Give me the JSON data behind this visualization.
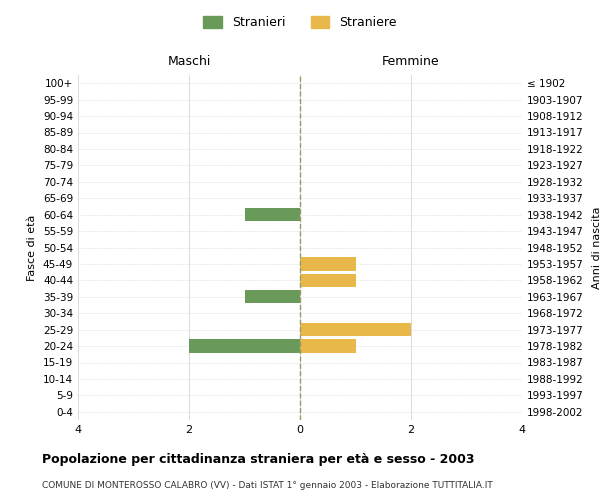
{
  "age_groups": [
    "100+",
    "95-99",
    "90-94",
    "85-89",
    "80-84",
    "75-79",
    "70-74",
    "65-69",
    "60-64",
    "55-59",
    "50-54",
    "45-49",
    "40-44",
    "35-39",
    "30-34",
    "25-29",
    "20-24",
    "15-19",
    "10-14",
    "5-9",
    "0-4"
  ],
  "birth_years": [
    "≤ 1902",
    "1903-1907",
    "1908-1912",
    "1913-1917",
    "1918-1922",
    "1923-1927",
    "1928-1932",
    "1933-1937",
    "1938-1942",
    "1943-1947",
    "1948-1952",
    "1953-1957",
    "1958-1962",
    "1963-1967",
    "1968-1972",
    "1973-1977",
    "1978-1982",
    "1983-1987",
    "1988-1992",
    "1993-1997",
    "1998-2002"
  ],
  "maschi": [
    0,
    0,
    0,
    0,
    0,
    0,
    0,
    0,
    -1,
    0,
    0,
    0,
    0,
    -1,
    0,
    0,
    -2,
    0,
    0,
    0,
    0
  ],
  "femmine": [
    0,
    0,
    0,
    0,
    0,
    0,
    0,
    0,
    0,
    0,
    0,
    1,
    1,
    0,
    0,
    2,
    1,
    0,
    0,
    0,
    0
  ],
  "color_maschi": "#6a9a5a",
  "color_femmine": "#e8b84b",
  "title": "Popolazione per cittadinanza straniera per età e sesso - 2003",
  "subtitle": "COMUNE DI MONTEROSSO CALABRO (VV) - Dati ISTAT 1° gennaio 2003 - Elaborazione TUTTITALIA.IT",
  "legend_maschi": "Stranieri",
  "legend_femmine": "Straniere",
  "xlabel_left": "Maschi",
  "xlabel_right": "Femmine",
  "ylabel_left": "Fasce di età",
  "ylabel_right": "Anni di nascita",
  "xlim": [
    -4,
    4
  ],
  "xticks": [
    -4,
    -2,
    0,
    2,
    4
  ],
  "xticklabels": [
    "4",
    "2",
    "0",
    "2",
    "4"
  ],
  "bar_height": 0.8,
  "background_color": "#ffffff",
  "grid_color": "#cccccc",
  "dashed_line_color": "#999966"
}
